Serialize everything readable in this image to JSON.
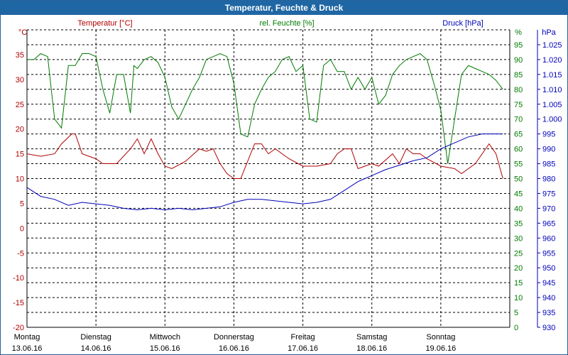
{
  "window": {
    "title": "Temperatur, Feuchte & Druck"
  },
  "colors": {
    "temperature": "#b00000",
    "humidity": "#007a00",
    "pressure": "#0000b8",
    "grid": "#000000",
    "title_bg": "#1f66a4"
  },
  "chart_data": {
    "type": "line",
    "title": "Temperatur, Feuchte & Druck",
    "grid": true,
    "legend": "top",
    "days": [
      {
        "day": "Montag",
        "date": "13.06.16"
      },
      {
        "day": "Dienstag",
        "date": "14.06.16"
      },
      {
        "day": "Mittwoch",
        "date": "15.06.16"
      },
      {
        "day": "Donnerstag",
        "date": "16.06.16"
      },
      {
        "day": "Freitag",
        "date": "17.06.16"
      },
      {
        "day": "Samstag",
        "date": "18.06.16"
      },
      {
        "day": "Sonntag",
        "date": "19.06.16"
      }
    ],
    "axes": {
      "temperature": {
        "label": "Temperatur [°C]",
        "unit": "°C",
        "range": [
          -20,
          40
        ],
        "ticks": [
          "35",
          "30",
          "25",
          "20",
          "15",
          "10",
          "5",
          "0",
          "-5",
          "-10",
          "-15",
          "-20"
        ]
      },
      "humidity": {
        "label": "rel. Feuchte [%]",
        "unit": "%",
        "range": [
          0,
          100
        ],
        "ticks": [
          "95",
          "90",
          "85",
          "80",
          "75",
          "70",
          "65",
          "60",
          "55",
          "50",
          "45",
          "40",
          "35",
          "30",
          "25",
          "20",
          "15",
          "10",
          "5",
          "0"
        ]
      },
      "pressure": {
        "label": "Druck [hPa]",
        "unit": "hPa",
        "range": [
          930,
          1030
        ],
        "ticks": [
          "1.025",
          "1.020",
          "1.015",
          "1.010",
          "1.005",
          "1.000",
          "995",
          "990",
          "985",
          "980",
          "975",
          "970",
          "965",
          "960",
          "955",
          "950",
          "945",
          "940",
          "935",
          "930"
        ]
      }
    },
    "series": [
      {
        "name": "Temperatur [°C]",
        "axis": "temperature",
        "color": "#b00000",
        "x": [
          0,
          0.2,
          0.4,
          0.5,
          0.65,
          0.7,
          0.8,
          0.9,
          1.0,
          1.1,
          1.3,
          1.5,
          1.6,
          1.7,
          1.8,
          1.9,
          2.0,
          2.1,
          2.3,
          2.5,
          2.6,
          2.7,
          2.8,
          2.9,
          3.0,
          3.1,
          3.3,
          3.4,
          3.5,
          3.6,
          3.7,
          3.8,
          4.0,
          4.2,
          4.4,
          4.5,
          4.6,
          4.7,
          4.8,
          4.9,
          5.0,
          5.1,
          5.3,
          5.4,
          5.5,
          5.6,
          5.7,
          5.8,
          6.0,
          6.2,
          6.3,
          6.5,
          6.6,
          6.7,
          6.8,
          6.9
        ],
        "values": [
          15,
          14.5,
          15,
          17,
          19,
          19,
          15,
          14.5,
          14,
          13,
          13,
          16,
          18,
          15,
          18,
          15,
          12.5,
          12,
          13.5,
          16,
          15.5,
          16,
          13,
          11,
          10,
          10,
          17,
          17,
          15,
          16,
          15,
          14,
          12.5,
          12.5,
          13,
          15,
          16,
          16,
          12,
          12.5,
          13,
          12.5,
          15,
          13,
          16,
          15,
          15,
          14,
          12.5,
          12,
          11,
          13,
          15,
          17,
          15,
          10
        ]
      },
      {
        "name": "rel. Feuchte [%]",
        "axis": "humidity",
        "color": "#007a00",
        "x": [
          0,
          0.1,
          0.2,
          0.3,
          0.4,
          0.5,
          0.6,
          0.7,
          0.8,
          0.9,
          1.0,
          1.1,
          1.2,
          1.3,
          1.4,
          1.5,
          1.55,
          1.6,
          1.7,
          1.8,
          1.9,
          2.0,
          2.1,
          2.2,
          2.3,
          2.4,
          2.5,
          2.6,
          2.7,
          2.8,
          2.9,
          3.0,
          3.1,
          3.2,
          3.3,
          3.4,
          3.5,
          3.6,
          3.7,
          3.8,
          3.9,
          4.0,
          4.1,
          4.2,
          4.3,
          4.4,
          4.5,
          4.6,
          4.7,
          4.8,
          4.9,
          5.0,
          5.1,
          5.2,
          5.3,
          5.4,
          5.5,
          5.6,
          5.7,
          5.8,
          5.9,
          6.0,
          6.1,
          6.2,
          6.3,
          6.4,
          6.5,
          6.6,
          6.7,
          6.8,
          6.9
        ],
        "values": [
          90,
          90,
          92,
          91,
          70,
          67,
          88,
          88,
          92,
          92,
          91,
          80,
          72,
          85,
          85,
          72,
          88,
          87,
          90,
          91,
          89,
          84,
          74,
          70,
          75,
          80,
          84,
          90,
          91,
          92,
          91,
          82,
          65,
          64,
          75,
          80,
          84,
          86,
          90,
          91,
          86,
          88,
          70,
          69,
          88,
          90,
          86,
          86,
          80,
          84,
          80,
          84,
          75,
          78,
          85,
          88,
          90,
          91,
          92,
          90,
          82,
          73,
          55,
          70,
          85,
          88,
          87,
          86,
          85,
          83,
          80
        ]
      },
      {
        "name": "Druck [hPa]",
        "axis": "pressure",
        "color": "#0000b8",
        "x": [
          0,
          0.2,
          0.4,
          0.6,
          0.8,
          1.0,
          1.2,
          1.4,
          1.6,
          1.8,
          2.0,
          2.2,
          2.4,
          2.6,
          2.8,
          3.0,
          3.2,
          3.4,
          3.6,
          3.8,
          4.0,
          4.2,
          4.4,
          4.6,
          4.8,
          5.0,
          5.2,
          5.4,
          5.6,
          5.8,
          6.0,
          6.2,
          6.4,
          6.6,
          6.8,
          6.9
        ],
        "values": [
          977,
          974,
          973,
          971,
          972,
          971.5,
          971,
          970,
          969.5,
          970,
          969.5,
          970,
          969.5,
          970,
          970.5,
          972,
          973,
          973,
          972.5,
          972,
          971.5,
          972,
          973,
          976,
          979,
          981,
          983,
          984.5,
          986,
          987,
          990,
          992,
          994,
          995,
          995,
          995
        ]
      }
    ]
  }
}
